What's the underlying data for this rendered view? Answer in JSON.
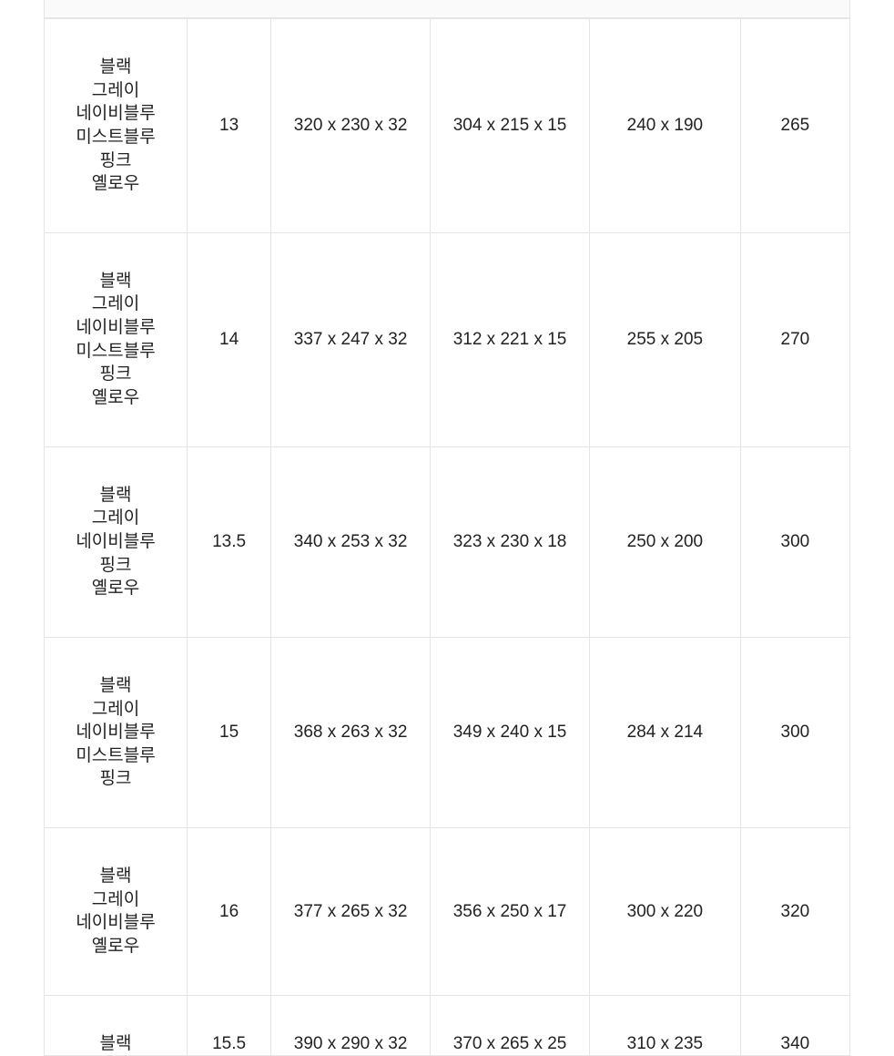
{
  "table": {
    "column_widths": [
      "17%",
      "10%",
      "19%",
      "19%",
      "18%",
      "13%"
    ],
    "border_color": "#e5e5e5",
    "text_color": "#222222",
    "background_color": "#ffffff",
    "header_bg": "#fafafa",
    "font_size": 19,
    "rows": [
      {
        "colors": "블랙\n그레이\n네이비블루\n미스트블루\n핑크\n옐로우",
        "size": "13",
        "outer_dim": "320 x 230 x 32",
        "inner_dim": "304 x 215 x 15",
        "laptop_dim": "240 x 190",
        "weight": "265"
      },
      {
        "colors": "블랙\n그레이\n네이비블루\n미스트블루\n핑크\n옐로우",
        "size": "14",
        "outer_dim": "337 x 247 x 32",
        "inner_dim": "312 x 221 x 15",
        "laptop_dim": "255 x 205",
        "weight": "270"
      },
      {
        "colors": "블랙\n그레이\n네이비블루\n핑크\n옐로우",
        "size": "13.5",
        "outer_dim": "340 x 253 x 32",
        "inner_dim": "323 x 230 x 18",
        "laptop_dim": "250 x 200",
        "weight": "300"
      },
      {
        "colors": "블랙\n그레이\n네이비블루\n미스트블루\n핑크",
        "size": "15",
        "outer_dim": "368 x 263 x 32",
        "inner_dim": "349 x 240 x 15",
        "laptop_dim": "284 x 214",
        "weight": "300"
      },
      {
        "colors": "블랙\n그레이\n네이비블루\n옐로우",
        "size": "16",
        "outer_dim": "377 x 265 x 32",
        "inner_dim": "356 x 250 x 17",
        "laptop_dim": "300 x 220",
        "weight": "320"
      },
      {
        "colors": "블랙",
        "size": "15.5",
        "outer_dim": "390 x 290 x 32",
        "inner_dim": "370 x 265 x 25",
        "laptop_dim": "310 x 235",
        "weight": "340"
      }
    ]
  }
}
